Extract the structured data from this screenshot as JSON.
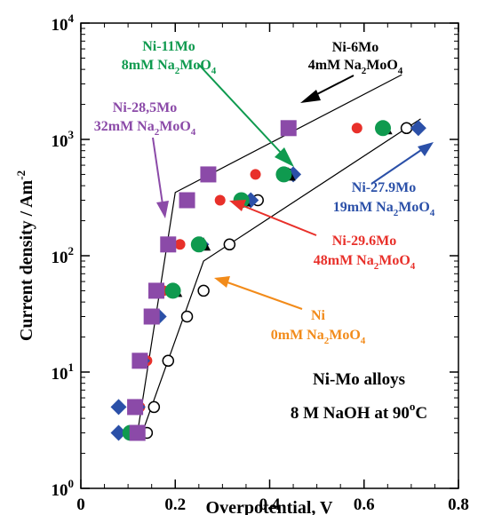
{
  "chart_data": {
    "type": "scatter",
    "xlabel": "Overpotential, V",
    "ylabel": "Current density / Am",
    "ylabel_sup": "-2",
    "xlim": [
      0,
      0.8
    ],
    "ylim": [
      1,
      10000
    ],
    "yscale": "log",
    "x_ticks": [
      {
        "value": 0,
        "label": "0"
      },
      {
        "value": 0.2,
        "label": "0.2"
      },
      {
        "value": 0.4,
        "label": "0.4"
      },
      {
        "value": 0.6,
        "label": "0.6"
      },
      {
        "value": 0.8,
        "label": "0.8"
      }
    ],
    "y_ticks": [
      {
        "value": 1,
        "base": "10",
        "exp": "0"
      },
      {
        "value": 10,
        "base": "10",
        "exp": "1"
      },
      {
        "value": 100,
        "base": "10",
        "exp": "2"
      },
      {
        "value": 1000,
        "base": "10",
        "exp": "3"
      },
      {
        "value": 10000,
        "base": "10",
        "exp": "4"
      }
    ],
    "box_text": {
      "line1": "Ni-Mo alloys",
      "line2_main": "8 M NaOH at 90",
      "line2_sup": "o",
      "line2_end": "C"
    },
    "series": [
      {
        "name": "Ni",
        "conc": "0mM Na",
        "sub": "2",
        "end": "MoO",
        "sub2": "4",
        "marker": "open-circle",
        "color": "#000000",
        "label_color": "#f28b1a",
        "x": [
          0.14,
          0.155,
          0.185,
          0.225,
          0.26,
          0.315,
          0.375,
          0.44,
          0.69
        ],
        "y": [
          3,
          5,
          12.5,
          30,
          50,
          125,
          300,
          500,
          1250
        ]
      },
      {
        "name": "Ni-29.6Mo",
        "conc": "48mM Na",
        "sub": "2",
        "end": "MoO",
        "sub2": "4",
        "marker": "circle",
        "color": "#e8302a",
        "label_color": "#e8302a",
        "x": [
          0.1,
          0.125,
          0.14,
          0.175,
          0.21,
          0.295,
          0.37,
          0.585
        ],
        "y": [
          3,
          5,
          12.5,
          50,
          125,
          300,
          500,
          1250
        ]
      },
      {
        "name": "Ni-27.9Mo",
        "conc": "19mM Na",
        "sub": "2",
        "end": "MoO",
        "sub2": "4",
        "marker": "diamond",
        "color": "#2b50a8",
        "label_color": "#2b50a8",
        "x": [
          0.08,
          0.08,
          0.12,
          0.13,
          0.165,
          0.195,
          0.255,
          0.36,
          0.45,
          0.715
        ],
        "y": [
          3,
          5,
          5,
          12.5,
          30,
          50,
          125,
          300,
          500,
          1250
        ]
      },
      {
        "name": "Ni-6Mo",
        "conc": "4mM Na",
        "sub": "2",
        "end": "MoO",
        "sub2": "4",
        "marker": "triangle",
        "color": "#000000",
        "label_color": "#000000",
        "x": [
          0.11,
          0.2,
          0.26,
          0.345,
          0.44,
          0.645
        ],
        "y": [
          3,
          50,
          125,
          300,
          500,
          1250
        ]
      },
      {
        "name": "Ni-11Mo",
        "conc": "8mM Na",
        "sub": "2",
        "end": "MoO",
        "sub2": "4",
        "marker": "circle-large",
        "color": "#0f9a4f",
        "label_color": "#0f9a4f",
        "x": [
          0.105,
          0.195,
          0.25,
          0.34,
          0.43,
          0.64
        ],
        "y": [
          3,
          50,
          125,
          300,
          500,
          1250
        ]
      },
      {
        "name": "Ni-28,5Mo",
        "conc": "32mM Na",
        "sub": "2",
        "end": "MoO",
        "sub2": "4",
        "marker": "square",
        "color": "#8b4aa8",
        "label_color": "#8b4aa8",
        "x": [
          0.12,
          0.115,
          0.125,
          0.15,
          0.16,
          0.185,
          0.225,
          0.27,
          0.44
        ],
        "y": [
          3,
          5,
          12.5,
          30,
          50,
          125,
          300,
          500,
          1250
        ]
      }
    ],
    "fit_lines": [
      {
        "name": "fit-line-alloy",
        "x": [
          0.12,
          0.2,
          0.68
        ],
        "y": [
          3,
          350,
          3600
        ]
      },
      {
        "name": "fit-line-ni",
        "x": [
          0.13,
          0.26,
          0.72
        ],
        "y": [
          3,
          90,
          1500
        ]
      }
    ]
  }
}
